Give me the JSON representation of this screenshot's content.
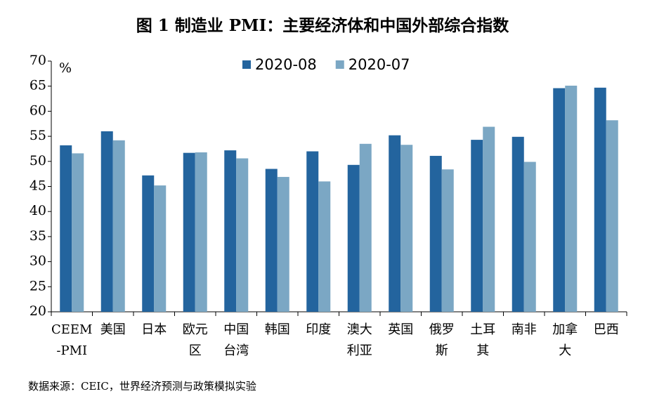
{
  "chart_data": {
    "type": "bar",
    "title": "图 1 制造业 PMI：主要经济体和中国外部综合指数",
    "y_unit": "%",
    "source": "数据来源：CEIC，世界经济预测与政策模拟实验",
    "categories": [
      "CEEM-PMI",
      "美国",
      "日本",
      "欧元区",
      "中国台湾",
      "韩国",
      "印度",
      "澳大利亚",
      "英国",
      "俄罗斯",
      "土耳其",
      "南非",
      "加拿大",
      "巴西"
    ],
    "series": [
      {
        "name": "2020-08",
        "color": "#23649e",
        "values": [
          53.2,
          56.0,
          47.2,
          51.7,
          52.2,
          48.5,
          52.0,
          49.3,
          55.2,
          51.1,
          54.3,
          54.9,
          64.6,
          64.7
        ]
      },
      {
        "name": "2020-07",
        "color": "#7ba7c4",
        "values": [
          51.6,
          54.2,
          45.2,
          51.8,
          50.6,
          46.9,
          46.0,
          53.5,
          53.3,
          48.4,
          56.9,
          49.9,
          65.1,
          58.2
        ]
      }
    ],
    "ylim": [
      20,
      70
    ],
    "yticks": [
      20,
      25,
      30,
      35,
      40,
      45,
      50,
      55,
      60,
      65,
      70
    ],
    "grid": false,
    "legend": "top"
  }
}
